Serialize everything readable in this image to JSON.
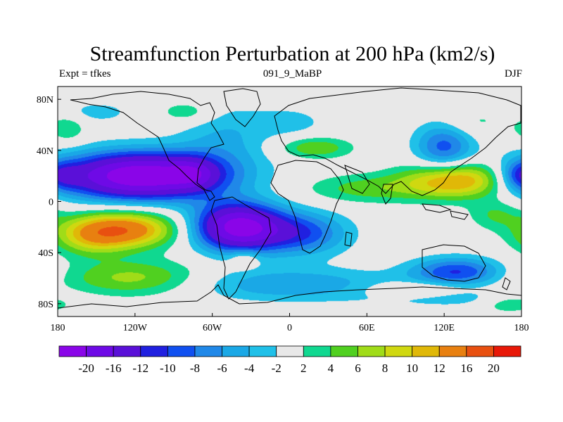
{
  "header": {
    "title": "Streamfunction Perturbation at 200 hPa (km2/s)",
    "left": "Expt = tfkes",
    "center": "091_9_MaBP",
    "right": "DJF"
  },
  "axes": {
    "x_ticks": [
      "180",
      "120W",
      "60W",
      "0",
      "60E",
      "120E",
      "180"
    ],
    "y_ticks": [
      "80N",
      "40N",
      "0",
      "40S",
      "80S"
    ]
  },
  "colorbar": {
    "colors": [
      "#8a05e8",
      "#6e0ae6",
      "#5a10d8",
      "#2020e0",
      "#1050f0",
      "#2088e8",
      "#1aa8e6",
      "#20c0e8",
      "#e8e8e8",
      "#10d890",
      "#50d020",
      "#a0dc18",
      "#d0d810",
      "#e0b808",
      "#e88010",
      "#e85010",
      "#e81808"
    ],
    "labels": [
      "-20",
      "-16",
      "-12",
      "-10",
      "-8",
      "-6",
      "-4",
      "-2",
      "2",
      "4",
      "6",
      "8",
      "10",
      "12",
      "16",
      "20"
    ]
  },
  "field": {
    "lon_range": [
      -180,
      180
    ],
    "lat_range": [
      -90,
      90
    ],
    "unit": "km2/s",
    "blobs": [
      {
        "lon": -115,
        "lat": 20,
        "amp": -24,
        "slon": 45,
        "slat": 13
      },
      {
        "lon": -75,
        "lat": 22,
        "amp": -6,
        "slon": 12,
        "slat": 8
      },
      {
        "lon": -40,
        "lat": -20,
        "amp": -22,
        "slon": 24,
        "slat": 13
      },
      {
        "lon": 10,
        "lat": -25,
        "amp": -9,
        "slon": 25,
        "slat": 12
      },
      {
        "lon": -50,
        "lat": 50,
        "amp": -4,
        "slon": 25,
        "slat": 18
      },
      {
        "lon": -130,
        "lat": -22,
        "amp": 15,
        "slon": 30,
        "slat": 10
      },
      {
        "lon": -155,
        "lat": -30,
        "amp": 5,
        "slon": 20,
        "slat": 10
      },
      {
        "lon": -120,
        "lat": -60,
        "amp": 7,
        "slon": 40,
        "slat": 10
      },
      {
        "lon": 130,
        "lat": 17,
        "amp": 14,
        "slon": 28,
        "slat": 10
      },
      {
        "lon": 60,
        "lat": 10,
        "amp": 5,
        "slon": 35,
        "slat": 8
      },
      {
        "lon": -80,
        "lat": 70,
        "amp": 4,
        "slon": 15,
        "slat": 6
      },
      {
        "lon": 20,
        "lat": 42,
        "amp": 6,
        "slon": 20,
        "slat": 6
      },
      {
        "lon": 160,
        "lat": -10,
        "amp": 4,
        "slon": 15,
        "slat": 8
      },
      {
        "lon": -35,
        "lat": -45,
        "amp": 4,
        "slon": 8,
        "slat": 5
      },
      {
        "lon": 100,
        "lat": -70,
        "amp": 5,
        "slon": 30,
        "slat": 5
      },
      {
        "lon": 130,
        "lat": -55,
        "amp": -10,
        "slon": 25,
        "slat": 8
      },
      {
        "lon": 120,
        "lat": 42,
        "amp": -9,
        "slon": 16,
        "slat": 15
      },
      {
        "lon": 0,
        "lat": -65,
        "amp": -6,
        "slon": 60,
        "slat": 9
      },
      {
        "lon": 120,
        "lat": -75,
        "amp": -4,
        "slon": 40,
        "slat": 5
      },
      {
        "lon": -175,
        "lat": 20,
        "amp": -4,
        "slon": 10,
        "slat": 8
      },
      {
        "lon": 175,
        "lat": 20,
        "amp": -4,
        "slon": 10,
        "slat": 8
      },
      {
        "lon": -172,
        "lat": 57,
        "amp": 4,
        "slon": 10,
        "slat": 8
      },
      {
        "lon": -150,
        "lat": 70,
        "amp": -3,
        "slon": 20,
        "slat": 6
      },
      {
        "lon": 0,
        "lat": 62,
        "amp": -3,
        "slon": 20,
        "slat": 8
      },
      {
        "lon": 140,
        "lat": 62,
        "amp": 3,
        "slon": 20,
        "slat": 8
      },
      {
        "lon": 170,
        "lat": -80,
        "amp": 4,
        "slon": 15,
        "slat": 5
      }
    ]
  }
}
